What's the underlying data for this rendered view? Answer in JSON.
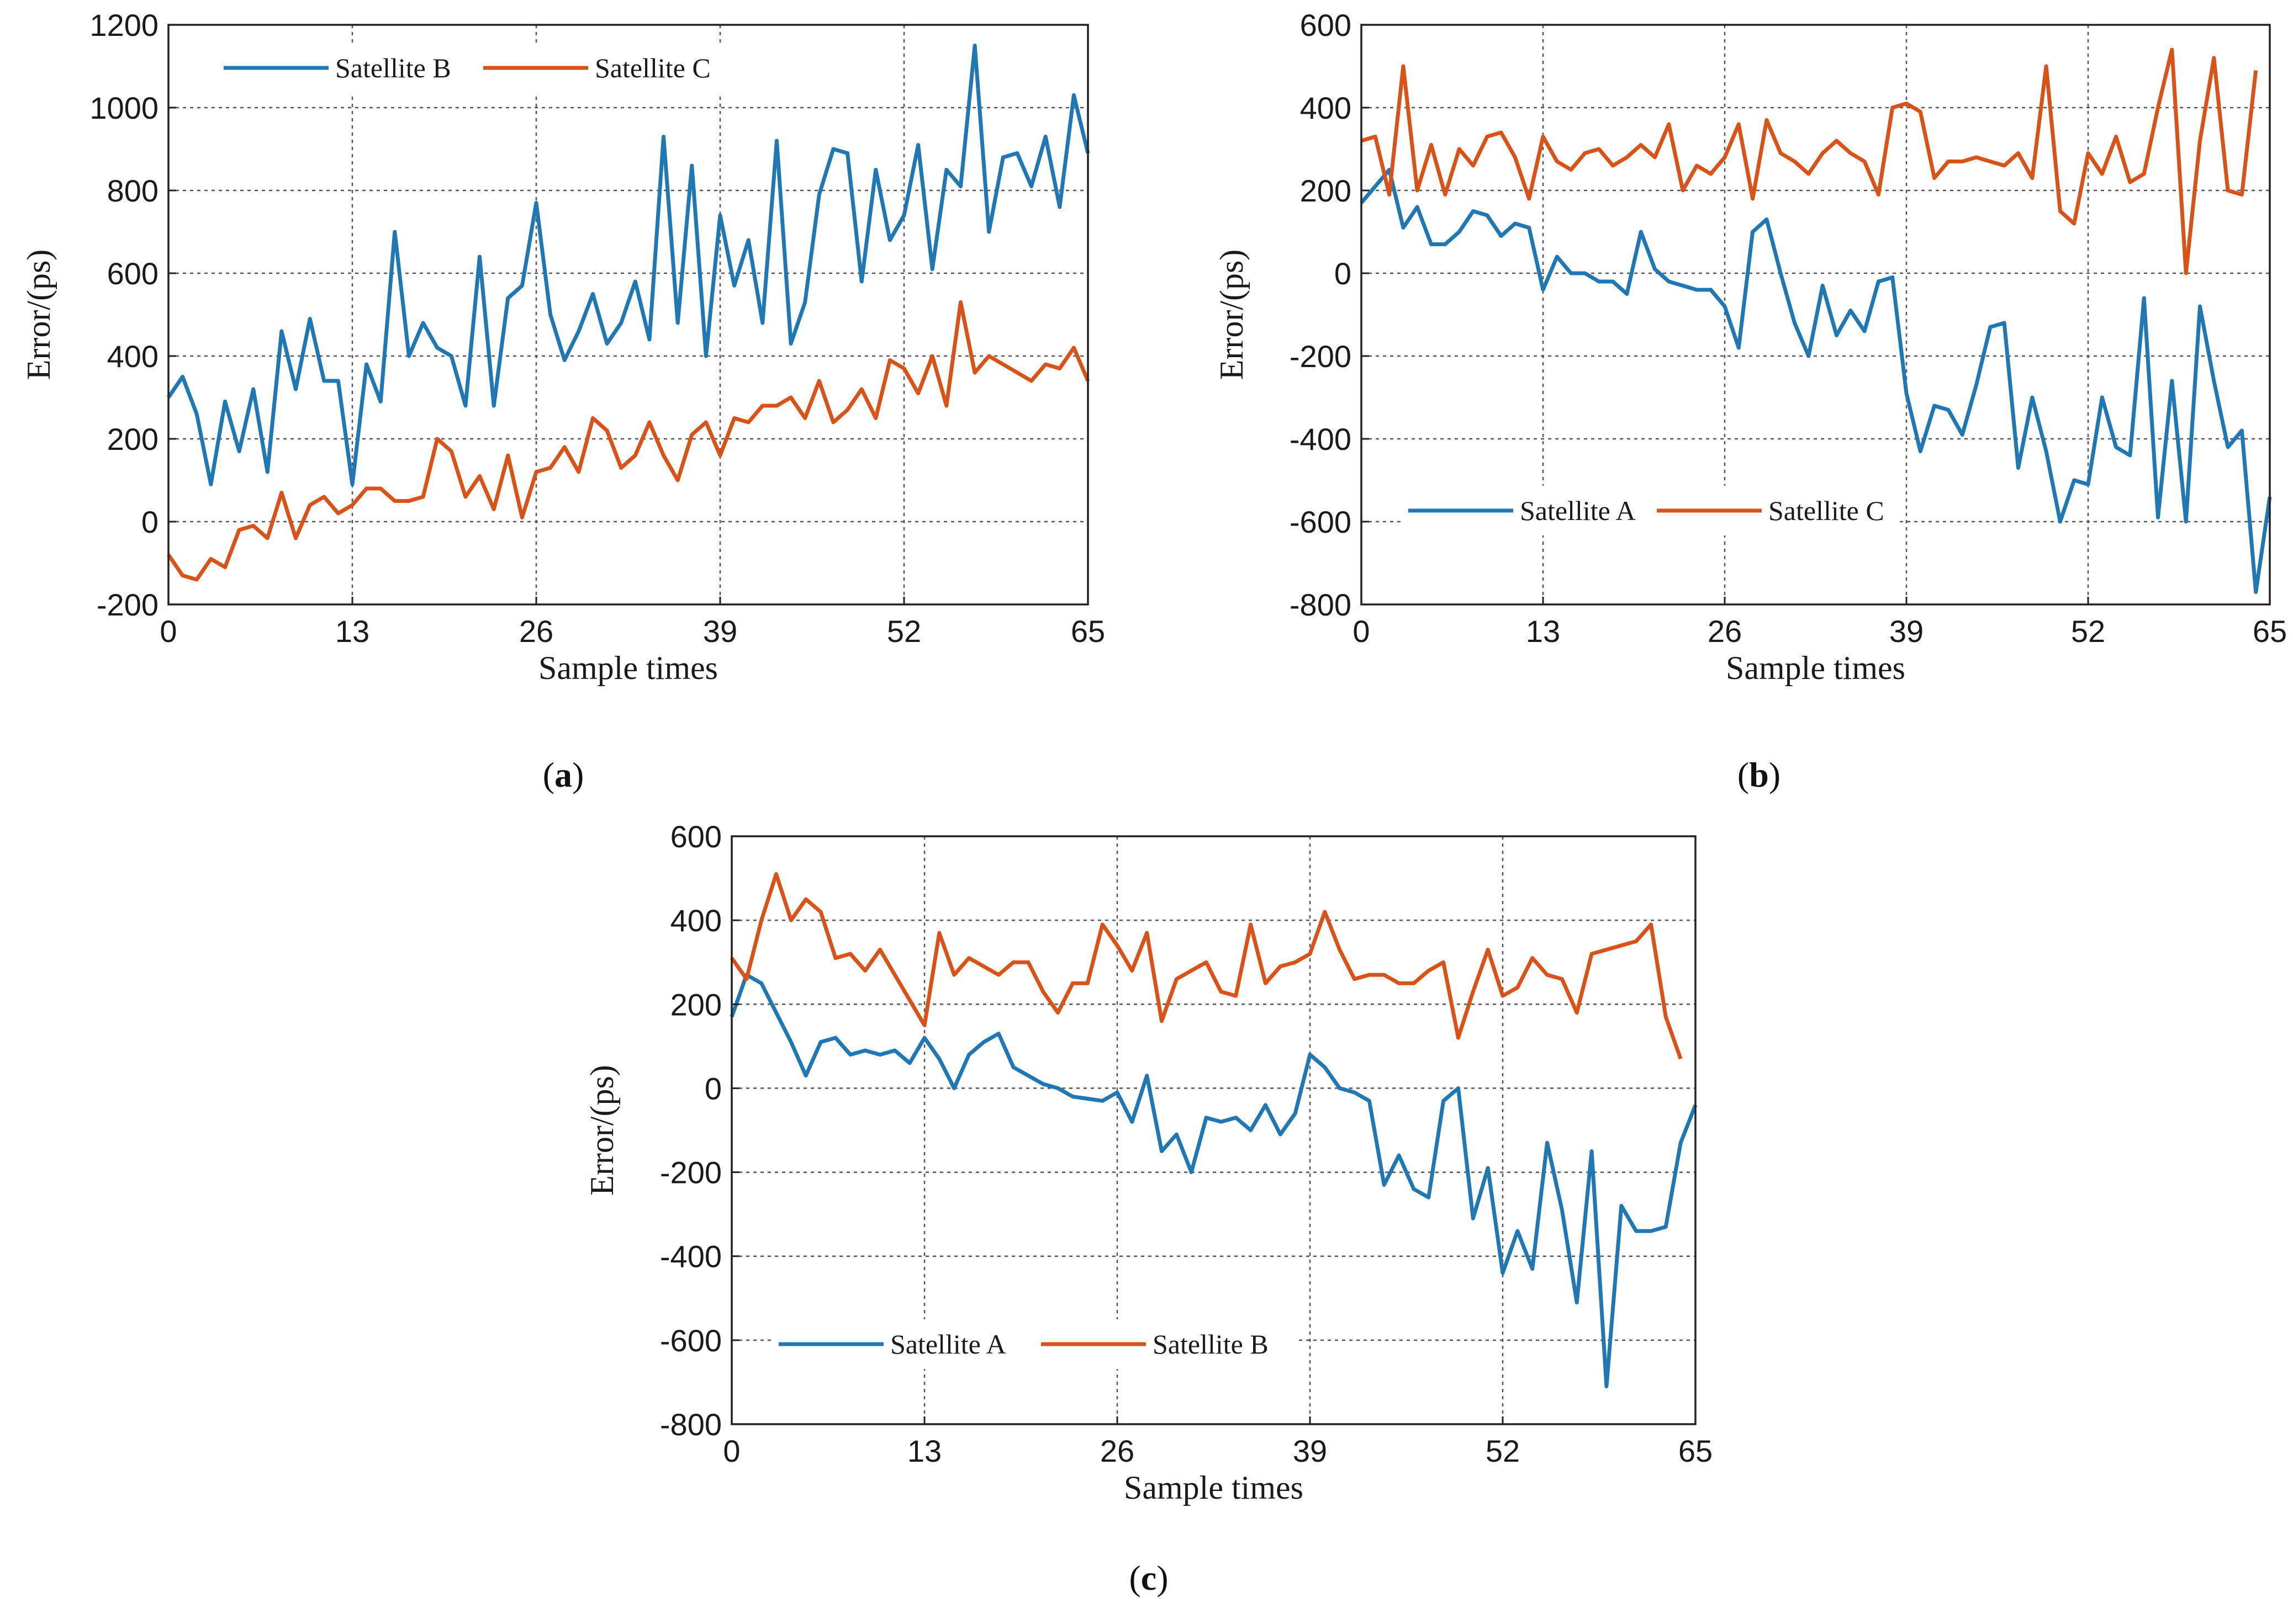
{
  "colors": {
    "series_blue": "#1f77b4",
    "series_orange": "#d95319"
  },
  "chart_data": [
    {
      "panel_label": "a",
      "type": "line",
      "xlabel": "Sample times",
      "ylabel": "Error/(ps)",
      "xlim": [
        0,
        65
      ],
      "ylim": [
        -200,
        1200
      ],
      "xticks": [
        0,
        13,
        26,
        39,
        52,
        65
      ],
      "yticks": [
        -200,
        0,
        200,
        400,
        600,
        800,
        1000,
        1200
      ],
      "legend_position": "top-left",
      "series": [
        {
          "name": "Satellite B",
          "color": "#1f77b4",
          "values": [
            300,
            350,
            260,
            90,
            290,
            170,
            320,
            120,
            460,
            320,
            490,
            340,
            340,
            90,
            380,
            290,
            700,
            400,
            480,
            420,
            400,
            280,
            640,
            280,
            540,
            570,
            770,
            500,
            390,
            460,
            550,
            430,
            480,
            580,
            440,
            930,
            480,
            860,
            400,
            740,
            570,
            680,
            480,
            920,
            430,
            530,
            790,
            900,
            890,
            580,
            850,
            680,
            740,
            910,
            610,
            850,
            810,
            1150,
            700,
            880,
            890,
            810,
            930,
            760,
            1030,
            890
          ]
        },
        {
          "name": "Satellite C",
          "color": "#d95319",
          "values": [
            -80,
            -130,
            -140,
            -90,
            -110,
            -20,
            -10,
            -40,
            70,
            -40,
            40,
            60,
            20,
            40,
            80,
            80,
            50,
            50,
            60,
            200,
            170,
            60,
            110,
            30,
            160,
            10,
            120,
            130,
            180,
            120,
            250,
            220,
            130,
            160,
            240,
            160,
            100,
            210,
            240,
            160,
            250,
            240,
            280,
            280,
            300,
            250,
            340,
            240,
            270,
            320,
            250,
            390,
            370,
            310,
            400,
            280,
            530,
            360,
            400,
            380,
            360,
            340,
            380,
            370,
            420,
            340
          ]
        }
      ]
    },
    {
      "panel_label": "b",
      "type": "line",
      "xlabel": "Sample times",
      "ylabel": "Error/(ps)",
      "xlim": [
        0,
        65
      ],
      "ylim": [
        -800,
        600
      ],
      "xticks": [
        0,
        13,
        26,
        39,
        52,
        65
      ],
      "yticks": [
        -800,
        -600,
        -400,
        -200,
        0,
        200,
        400,
        600
      ],
      "legend_position": "bottom-left",
      "series": [
        {
          "name": "Satellite A",
          "color": "#1f77b4",
          "values": [
            170,
            210,
            250,
            110,
            160,
            70,
            70,
            100,
            150,
            140,
            90,
            120,
            110,
            -40,
            40,
            0,
            0,
            -20,
            -20,
            -50,
            100,
            10,
            -20,
            -30,
            -40,
            -40,
            -80,
            -180,
            100,
            130,
            0,
            -120,
            -200,
            -30,
            -150,
            -90,
            -140,
            -20,
            -10,
            -290,
            -430,
            -320,
            -330,
            -390,
            -270,
            -130,
            -120,
            -470,
            -300,
            -430,
            -600,
            -500,
            -510,
            -300,
            -420,
            -440,
            -60,
            -590,
            -260,
            -600,
            -80,
            -260,
            -420,
            -380,
            -770,
            -540
          ]
        },
        {
          "name": "Satellite C",
          "color": "#d95319",
          "values": [
            320,
            330,
            190,
            500,
            200,
            310,
            190,
            300,
            260,
            330,
            340,
            280,
            180,
            330,
            270,
            250,
            290,
            300,
            260,
            280,
            310,
            280,
            360,
            200,
            260,
            240,
            280,
            360,
            180,
            370,
            290,
            270,
            240,
            290,
            320,
            290,
            270,
            190,
            400,
            410,
            390,
            230,
            270,
            270,
            280,
            270,
            260,
            290,
            230,
            500,
            150,
            120,
            290,
            240,
            330,
            220,
            240,
            400,
            540,
            0,
            320,
            520,
            200,
            190,
            490
          ]
        }
      ]
    },
    {
      "panel_label": "c",
      "type": "line",
      "xlabel": "Sample times",
      "ylabel": "Error/(ps)",
      "xlim": [
        0,
        65
      ],
      "ylim": [
        -800,
        600
      ],
      "xticks": [
        0,
        13,
        26,
        39,
        52,
        65
      ],
      "yticks": [
        -800,
        -600,
        -400,
        -200,
        0,
        200,
        400,
        600
      ],
      "legend_position": "bottom-left",
      "series": [
        {
          "name": "Satellite A",
          "color": "#1f77b4",
          "values": [
            170,
            270,
            250,
            180,
            110,
            30,
            110,
            120,
            80,
            90,
            80,
            90,
            60,
            120,
            70,
            0,
            80,
            110,
            130,
            50,
            30,
            10,
            0,
            -20,
            -25,
            -30,
            -10,
            -80,
            30,
            -150,
            -110,
            -200,
            -70,
            -80,
            -70,
            -100,
            -40,
            -110,
            -60,
            80,
            50,
            0,
            -10,
            -30,
            -230,
            -160,
            -240,
            -260,
            -30,
            0,
            -310,
            -190,
            -440,
            -340,
            -430,
            -130,
            -290,
            -510,
            -150,
            -710,
            -280,
            -340,
            -340,
            -330,
            -130,
            -40
          ]
        },
        {
          "name": "Satellite B",
          "color": "#d95319",
          "values": [
            310,
            260,
            400,
            510,
            400,
            450,
            420,
            310,
            320,
            280,
            330,
            270,
            210,
            150,
            370,
            270,
            310,
            290,
            270,
            300,
            300,
            230,
            180,
            250,
            250,
            390,
            340,
            280,
            370,
            160,
            260,
            280,
            300,
            230,
            220,
            390,
            250,
            290,
            300,
            320,
            420,
            330,
            260,
            270,
            270,
            250,
            250,
            280,
            300,
            120,
            230,
            330,
            220,
            240,
            310,
            270,
            260,
            180,
            320,
            330,
            340,
            350,
            390,
            170,
            70
          ]
        }
      ]
    }
  ]
}
